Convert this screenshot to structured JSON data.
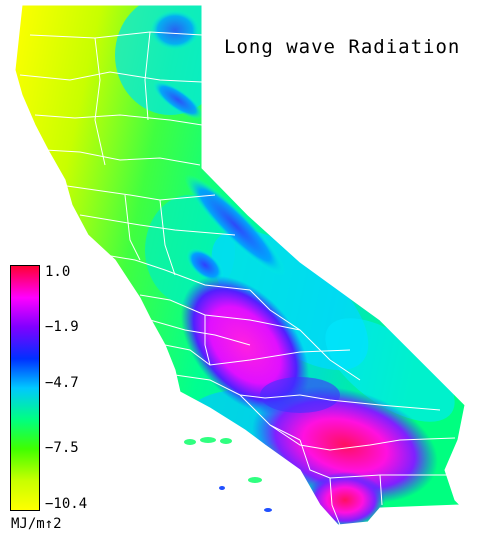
{
  "map": {
    "title": "Long wave Radiation",
    "legend": {
      "ticks": [
        "1.0",
        "−1.9",
        "−4.7",
        "−7.5",
        "−10.4"
      ],
      "unit": "MJ/m↑2",
      "min": -10.4,
      "max": 1.0,
      "colors": [
        "#ff0033",
        "#ff00ff",
        "#8000ff",
        "#0030ff",
        "#00c8ff",
        "#00ff80",
        "#40ff00",
        "#c8ff00",
        "#ffff00"
      ]
    },
    "boundary_color": "#ffffff"
  }
}
